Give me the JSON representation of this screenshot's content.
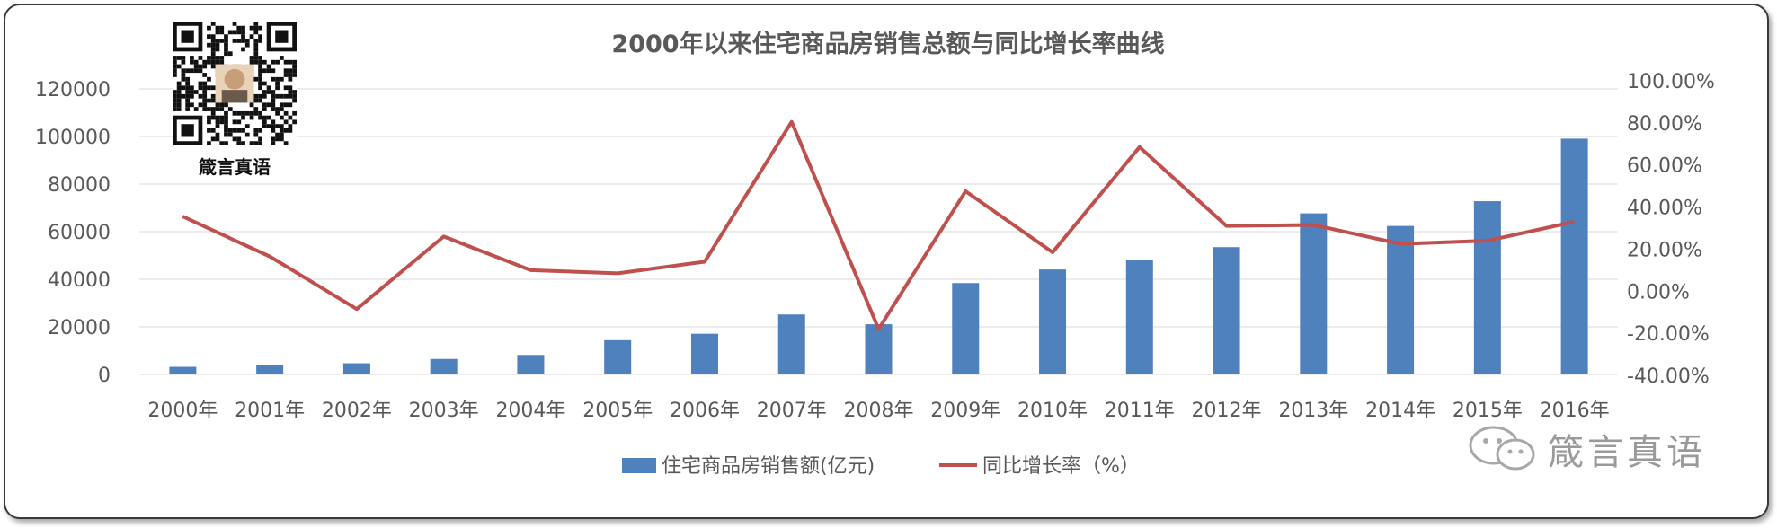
{
  "chart_data": {
    "type": "bar+line",
    "title": "2000年以来住宅商品房销售总额与同比增长率曲线",
    "categories": [
      "2000年",
      "2001年",
      "2002年",
      "2003年",
      "2004年",
      "2005年",
      "2006年",
      "2007年",
      "2008年",
      "2009年",
      "2010年",
      "2011年",
      "2012年",
      "2013年",
      "2014年",
      "2015年",
      "2016年"
    ],
    "series": [
      {
        "name": "住宅商品房销售额(亿元)",
        "type": "bar",
        "axis": "left",
        "color": "#4f81bd",
        "values": [
          3200,
          3900,
          4700,
          6500,
          8200,
          14400,
          17100,
          25200,
          21100,
          38400,
          44100,
          48200,
          53500,
          67700,
          62400,
          72800,
          99100
        ]
      },
      {
        "name": "同比增长率（%）",
        "type": "line",
        "axis": "right",
        "color": "#c0504d",
        "values": [
          35.5,
          16.5,
          -8.5,
          26.0,
          10.0,
          8.5,
          14.0,
          80.5,
          -18.0,
          47.5,
          18.5,
          68.5,
          31.0,
          31.5,
          22.5,
          24.0,
          33.0
        ]
      }
    ],
    "left_axis": {
      "min": 0,
      "max": 120000,
      "ticks": [
        "0",
        "20000",
        "40000",
        "60000",
        "80000",
        "100000",
        "120000"
      ]
    },
    "right_axis": {
      "min": -40,
      "max": 100,
      "ticks": [
        "-40.00%",
        "-20.00%",
        "0.00%",
        "20.00%",
        "40.00%",
        "60.00%",
        "80.00%",
        "100.00%"
      ]
    },
    "grid": true,
    "legend_position": "bottom"
  },
  "qr_caption": "箴言真语",
  "watermark_text": "箴言真语"
}
